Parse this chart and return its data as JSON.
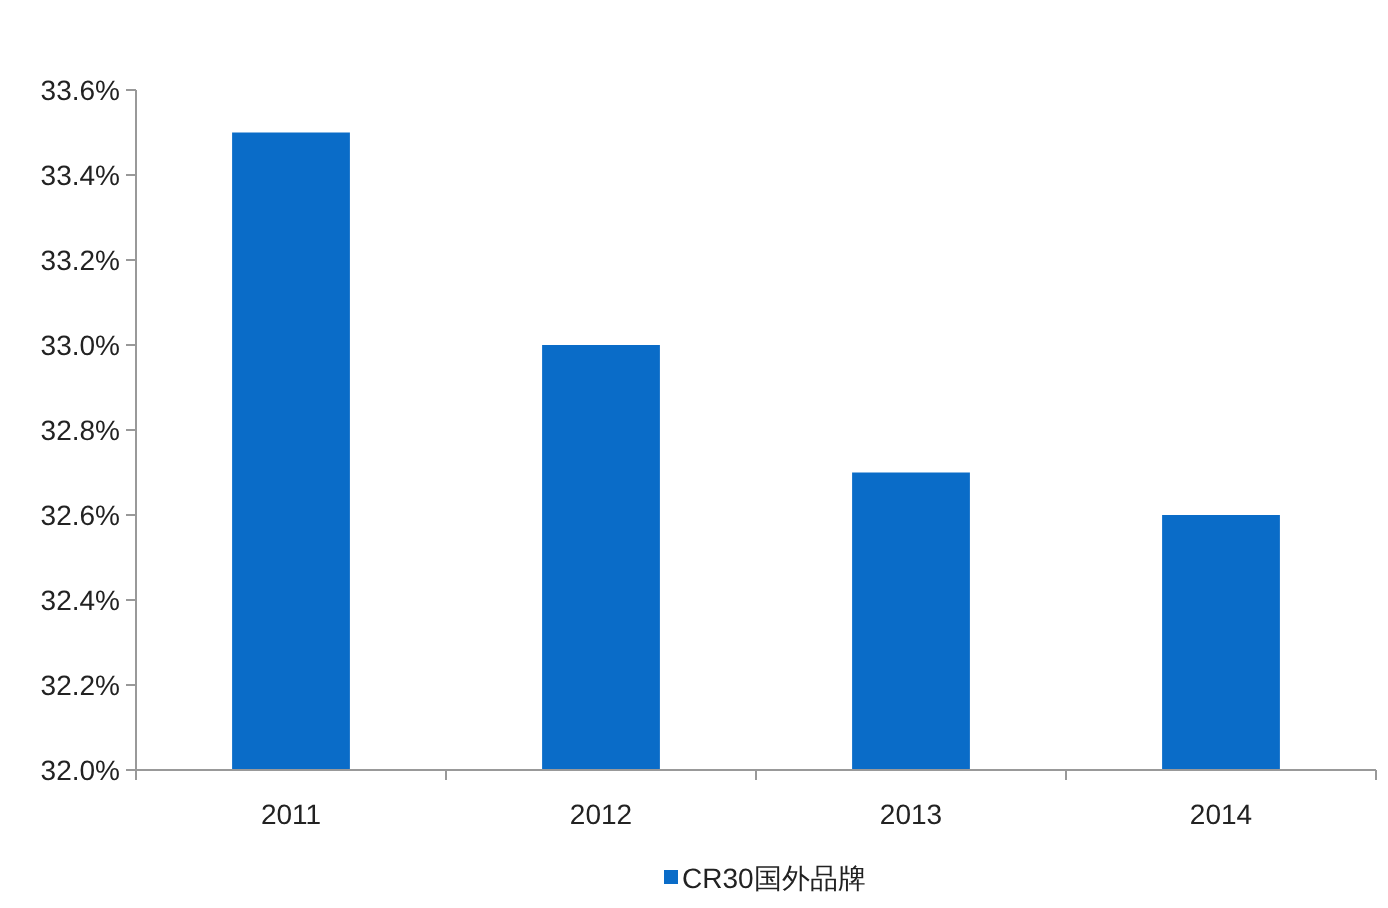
{
  "chart_data": {
    "type": "bar",
    "categories": [
      "2011",
      "2012",
      "2013",
      "2014"
    ],
    "series": [
      {
        "name": "CR30国外品牌",
        "color": "#0a6cc8",
        "values": [
          33.5,
          33.0,
          32.7,
          32.6
        ]
      }
    ],
    "ylim": [
      32.0,
      33.6
    ],
    "yticks": [
      {
        "value": 32.0,
        "label": "32.0%"
      },
      {
        "value": 32.2,
        "label": "32.2%"
      },
      {
        "value": 32.4,
        "label": "32.4%"
      },
      {
        "value": 32.6,
        "label": "32.6%"
      },
      {
        "value": 32.8,
        "label": "32.8%"
      },
      {
        "value": 33.0,
        "label": "33.0%"
      },
      {
        "value": 33.2,
        "label": "33.2%"
      },
      {
        "value": 33.4,
        "label": "33.4%"
      },
      {
        "value": 33.6,
        "label": "33.6%"
      }
    ],
    "legend": "bottom"
  }
}
